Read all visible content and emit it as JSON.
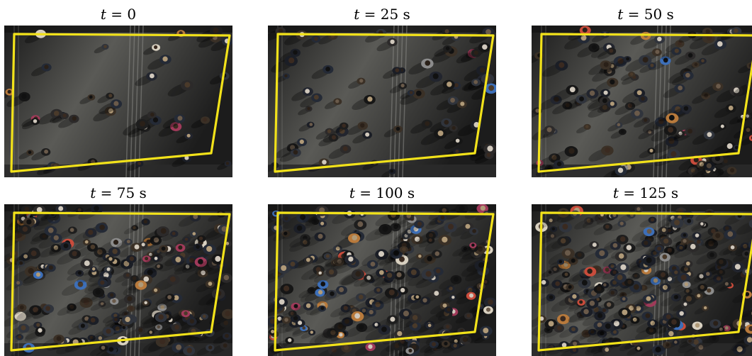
{
  "panels": [
    {
      "t_label": "t = 0",
      "t_var": "t",
      "t_rest": " = 0",
      "crowd_density": 0.1
    },
    {
      "t_label": "t = 25 s",
      "t_var": "t",
      "t_rest": " = 25 s",
      "crowd_density": 0.22
    },
    {
      "t_label": "t = 50 s",
      "t_var": "t",
      "t_rest": " = 50 s",
      "crowd_density": 0.4
    },
    {
      "t_label": "t = 75 s",
      "t_var": "t",
      "t_rest": " = 75 s",
      "crowd_density": 0.85
    },
    {
      "t_label": "t = 100 s",
      "t_var": "t",
      "t_rest": " = 100 s",
      "crowd_density": 0.9
    },
    {
      "t_label": "t = 125 s",
      "t_var": "t",
      "t_rest": " = 125 s",
      "crowd_density": 1.0
    }
  ],
  "colors": {
    "roi_outline": "#f2e21a",
    "floor_dark": "#1c1c1c",
    "floor_light": "#5a5a56",
    "stripe": "#8a8a86"
  }
}
